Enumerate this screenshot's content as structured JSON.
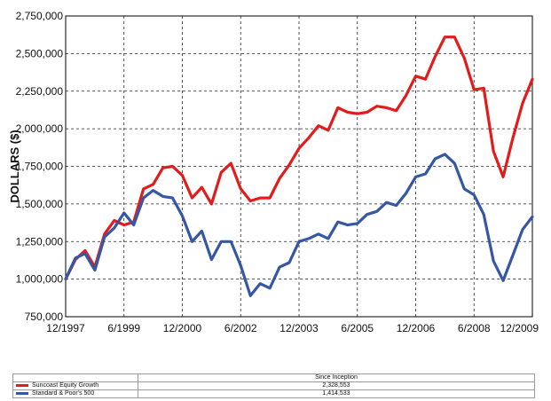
{
  "chart_data": {
    "type": "line",
    "ylabel": "DOLLARS ($)",
    "xlabel": "",
    "ylim": [
      750000,
      2750000
    ],
    "yticks": [
      "750,000",
      "1,000,000",
      "1,250,000",
      "1,500,000",
      "1,750,000",
      "2,000,000",
      "2,250,000",
      "2,500,000",
      "2,750,000"
    ],
    "xtick_labels": [
      "12/1997",
      "6/1999",
      "12/2000",
      "6/2002",
      "12/2003",
      "6/2005",
      "12/2006",
      "6/2008",
      "12/2009"
    ],
    "grid": true,
    "x": [
      "12/1997",
      "3/1998",
      "6/1998",
      "9/1998",
      "12/1998",
      "3/1999",
      "6/1999",
      "9/1999",
      "12/1999",
      "3/2000",
      "6/2000",
      "9/2000",
      "12/2000",
      "3/2001",
      "6/2001",
      "9/2001",
      "12/2001",
      "3/2002",
      "6/2002",
      "9/2002",
      "12/2002",
      "3/2003",
      "6/2003",
      "9/2003",
      "12/2003",
      "3/2004",
      "6/2004",
      "9/2004",
      "12/2004",
      "3/2005",
      "6/2005",
      "9/2005",
      "12/2005",
      "3/2006",
      "6/2006",
      "9/2006",
      "12/2006",
      "3/2007",
      "6/2007",
      "9/2007",
      "12/2007",
      "3/2008",
      "6/2008",
      "9/2008",
      "12/2008",
      "3/2009",
      "6/2009",
      "9/2009",
      "12/2009"
    ],
    "series": [
      {
        "name": "Suncoast Equity Growth",
        "color": "#e31b1b",
        "values": [
          1000000,
          1130000,
          1190000,
          1080000,
          1300000,
          1390000,
          1360000,
          1380000,
          1600000,
          1630000,
          1740000,
          1750000,
          1690000,
          1540000,
          1610000,
          1500000,
          1710000,
          1770000,
          1600000,
          1520000,
          1540000,
          1540000,
          1670000,
          1760000,
          1870000,
          1940000,
          2020000,
          1990000,
          2140000,
          2110000,
          2100000,
          2110000,
          2150000,
          2140000,
          2120000,
          2220000,
          2350000,
          2330000,
          2480000,
          2610000,
          2610000,
          2470000,
          2260000,
          2270000,
          1850000,
          1680000,
          1940000,
          2170000,
          2328553
        ]
      },
      {
        "name": "Standard & Poor's 500",
        "color": "#3557a4",
        "values": [
          1000000,
          1140000,
          1170000,
          1060000,
          1280000,
          1340000,
          1440000,
          1360000,
          1540000,
          1590000,
          1550000,
          1540000,
          1420000,
          1250000,
          1320000,
          1130000,
          1250000,
          1250000,
          1090000,
          890000,
          970000,
          940000,
          1080000,
          1110000,
          1250000,
          1270000,
          1300000,
          1270000,
          1380000,
          1360000,
          1370000,
          1430000,
          1450000,
          1510000,
          1490000,
          1570000,
          1680000,
          1700000,
          1800000,
          1830000,
          1770000,
          1600000,
          1560000,
          1430000,
          1120000,
          990000,
          1160000,
          1330000,
          1414533
        ]
      }
    ]
  },
  "table": {
    "header": "Since Inception",
    "rows": [
      {
        "label": "Suncoast Equity Growth",
        "value": "2,328,553",
        "color": "#e31b1b"
      },
      {
        "label": "Standard & Poor's 500",
        "value": "1,414,533",
        "color": "#3557a4"
      }
    ]
  }
}
